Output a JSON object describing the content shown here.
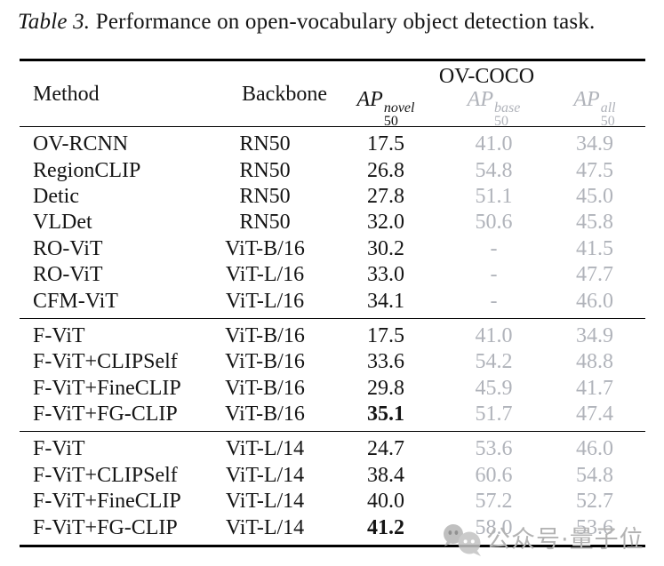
{
  "caption": {
    "label": "Table 3.",
    "rest": " Performance on open-vocabulary object detection task."
  },
  "colors": {
    "ink": "#141414",
    "muted": "#b0b3ba",
    "watermark": "#b3b3b3",
    "rule": "#000000"
  },
  "table": {
    "col_method": "Method",
    "col_backbone": "Backbone",
    "group_header": "OV-COCO",
    "metrics": [
      {
        "name": "AP",
        "sub": "50",
        "sup": "novel",
        "muted": false
      },
      {
        "name": "AP",
        "sub": "50",
        "sup": "base",
        "muted": true
      },
      {
        "name": "AP",
        "sub": "50",
        "sup": "all",
        "muted": true
      }
    ],
    "sections": [
      {
        "rows": [
          {
            "method": "OV-RCNN",
            "backbone": "RN50",
            "novel": "17.5",
            "base": "41.0",
            "all": "34.9",
            "bold": false
          },
          {
            "method": "RegionCLIP",
            "backbone": "RN50",
            "novel": "26.8",
            "base": "54.8",
            "all": "47.5",
            "bold": false
          },
          {
            "method": "Detic",
            "backbone": "RN50",
            "novel": "27.8",
            "base": "51.1",
            "all": "45.0",
            "bold": false
          },
          {
            "method": "VLDet",
            "backbone": "RN50",
            "novel": "32.0",
            "base": "50.6",
            "all": "45.8",
            "bold": false
          },
          {
            "method": "RO-ViT",
            "backbone": "ViT-B/16",
            "novel": "30.2",
            "base": "-",
            "all": "41.5",
            "bold": false
          },
          {
            "method": "RO-ViT",
            "backbone": "ViT-L/16",
            "novel": "33.0",
            "base": "-",
            "all": "47.7",
            "bold": false
          },
          {
            "method": "CFM-ViT",
            "backbone": "ViT-L/16",
            "novel": "34.1",
            "base": "-",
            "all": "46.0",
            "bold": false
          }
        ]
      },
      {
        "rows": [
          {
            "method": "F-ViT",
            "backbone": "ViT-B/16",
            "novel": "17.5",
            "base": "41.0",
            "all": "34.9",
            "bold": false
          },
          {
            "method": "F-ViT+CLIPSelf",
            "backbone": "ViT-B/16",
            "novel": "33.6",
            "base": "54.2",
            "all": "48.8",
            "bold": false
          },
          {
            "method": "F-ViT+FineCLIP",
            "backbone": "ViT-B/16",
            "novel": "29.8",
            "base": "45.9",
            "all": "41.7",
            "bold": false
          },
          {
            "method": "F-ViT+FG-CLIP",
            "backbone": "ViT-B/16",
            "novel": "35.1",
            "base": "51.7",
            "all": "47.4",
            "bold": true
          }
        ]
      },
      {
        "rows": [
          {
            "method": "F-ViT",
            "backbone": "ViT-L/14",
            "novel": "24.7",
            "base": "53.6",
            "all": "46.0",
            "bold": false
          },
          {
            "method": "F-ViT+CLIPSelf",
            "backbone": "ViT-L/14",
            "novel": "38.4",
            "base": "60.6",
            "all": "54.8",
            "bold": false
          },
          {
            "method": "F-ViT+FineCLIP",
            "backbone": "ViT-L/14",
            "novel": "40.0",
            "base": "57.2",
            "all": "52.7",
            "bold": false
          },
          {
            "method": "F-ViT+FG-CLIP",
            "backbone": "ViT-L/14",
            "novel": "41.2",
            "base": "58.0",
            "all": "53.6",
            "bold": true
          }
        ]
      }
    ]
  },
  "watermark": {
    "icon": "chat-bubbles-icon",
    "text": "公众号·量子位"
  }
}
